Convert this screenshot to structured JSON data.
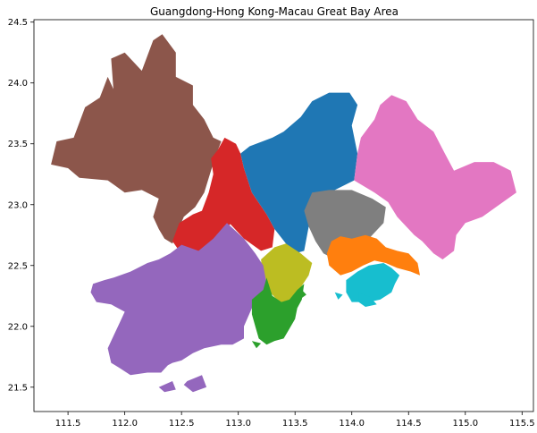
{
  "title": "Guangdong-Hong Kong-Macau Great Bay Area",
  "chart_data": {
    "type": "map",
    "title": "Guangdong-Hong Kong-Macau Great Bay Area",
    "xlabel": "",
    "ylabel": "",
    "xlim": [
      111.2,
      115.6
    ],
    "ylim": [
      21.3,
      24.52
    ],
    "xticks": [
      {
        "value": 111.5,
        "label": "111.5"
      },
      {
        "value": 112.0,
        "label": "112.0"
      },
      {
        "value": 112.5,
        "label": "112.5"
      },
      {
        "value": 113.0,
        "label": "113.0"
      },
      {
        "value": 113.5,
        "label": "113.5"
      },
      {
        "value": 114.0,
        "label": "114.0"
      },
      {
        "value": 114.5,
        "label": "114.5"
      },
      {
        "value": 115.0,
        "label": "115.0"
      },
      {
        "value": 115.5,
        "label": "115.5"
      }
    ],
    "yticks": [
      {
        "value": 21.5,
        "label": "21.5"
      },
      {
        "value": 22.0,
        "label": "22.0"
      },
      {
        "value": 22.5,
        "label": "22.5"
      },
      {
        "value": 23.0,
        "label": "23.0"
      },
      {
        "value": 23.5,
        "label": "23.5"
      },
      {
        "value": 24.0,
        "label": "24.0"
      },
      {
        "value": 24.5,
        "label": "24.5"
      }
    ],
    "grid": false,
    "legend": "none",
    "regions": [
      {
        "key": "brown",
        "color": "#8c564b",
        "polygons": [
          [
            [
              111.35,
              23.33
            ],
            [
              111.4,
              23.52
            ],
            [
              111.55,
              23.55
            ],
            [
              111.65,
              23.8
            ],
            [
              111.78,
              23.88
            ],
            [
              111.85,
              24.05
            ],
            [
              111.9,
              23.95
            ],
            [
              111.88,
              24.2
            ],
            [
              112.0,
              24.25
            ],
            [
              112.15,
              24.1
            ],
            [
              112.25,
              24.35
            ],
            [
              112.33,
              24.4
            ],
            [
              112.45,
              24.25
            ],
            [
              112.45,
              24.05
            ],
            [
              112.6,
              23.98
            ],
            [
              112.6,
              23.82
            ],
            [
              112.7,
              23.7
            ],
            [
              112.78,
              23.55
            ],
            [
              112.85,
              23.52
            ],
            [
              112.8,
              23.4
            ],
            [
              112.75,
              23.25
            ],
            [
              112.7,
              23.1
            ],
            [
              112.62,
              22.98
            ],
            [
              112.52,
              22.9
            ],
            [
              112.42,
              22.68
            ],
            [
              112.35,
              22.72
            ],
            [
              112.3,
              22.8
            ],
            [
              112.25,
              22.9
            ],
            [
              112.3,
              23.05
            ],
            [
              112.15,
              23.12
            ],
            [
              112.0,
              23.1
            ],
            [
              111.85,
              23.2
            ],
            [
              111.6,
              23.22
            ],
            [
              111.5,
              23.3
            ]
          ]
        ]
      },
      {
        "key": "red",
        "color": "#d62728",
        "polygons": [
          [
            [
              112.88,
              23.55
            ],
            [
              112.82,
              23.45
            ],
            [
              112.76,
              23.38
            ],
            [
              112.78,
              23.25
            ],
            [
              112.74,
              23.1
            ],
            [
              112.68,
              22.95
            ],
            [
              112.6,
              22.92
            ],
            [
              112.48,
              22.85
            ],
            [
              112.42,
              22.7
            ],
            [
              112.48,
              22.62
            ],
            [
              112.6,
              22.6
            ],
            [
              112.7,
              22.6
            ],
            [
              112.82,
              22.74
            ],
            [
              112.93,
              22.84
            ],
            [
              113.05,
              22.72
            ],
            [
              113.2,
              22.62
            ],
            [
              113.3,
              22.65
            ],
            [
              113.32,
              22.8
            ],
            [
              113.25,
              22.92
            ],
            [
              113.12,
              23.1
            ],
            [
              113.05,
              23.3
            ],
            [
              113.02,
              23.42
            ],
            [
              112.98,
              23.5
            ]
          ]
        ]
      },
      {
        "key": "blue",
        "color": "#1f77b4",
        "polygons": [
          [
            [
              113.02,
              23.42
            ],
            [
              113.1,
              23.48
            ],
            [
              113.3,
              23.55
            ],
            [
              113.4,
              23.6
            ],
            [
              113.55,
              23.72
            ],
            [
              113.65,
              23.85
            ],
            [
              113.8,
              23.92
            ],
            [
              113.98,
              23.92
            ],
            [
              114.05,
              23.82
            ],
            [
              114.0,
              23.65
            ],
            [
              114.05,
              23.42
            ],
            [
              114.02,
              23.2
            ],
            [
              113.85,
              23.12
            ],
            [
              113.72,
              23.02
            ],
            [
              113.62,
              22.82
            ],
            [
              113.58,
              22.62
            ],
            [
              113.5,
              22.6
            ],
            [
              113.42,
              22.68
            ],
            [
              113.32,
              22.8
            ],
            [
              113.25,
              22.92
            ],
            [
              113.12,
              23.1
            ],
            [
              113.05,
              23.3
            ]
          ]
        ]
      },
      {
        "key": "pink",
        "color": "#e377c2",
        "polygons": [
          [
            [
              114.05,
              23.42
            ],
            [
              114.08,
              23.55
            ],
            [
              114.2,
              23.7
            ],
            [
              114.25,
              23.82
            ],
            [
              114.35,
              23.9
            ],
            [
              114.48,
              23.85
            ],
            [
              114.58,
              23.7
            ],
            [
              114.72,
              23.6
            ],
            [
              114.82,
              23.42
            ],
            [
              114.9,
              23.28
            ],
            [
              115.08,
              23.35
            ],
            [
              115.25,
              23.35
            ],
            [
              115.4,
              23.28
            ],
            [
              115.45,
              23.1
            ],
            [
              115.3,
              23.0
            ],
            [
              115.15,
              22.9
            ],
            [
              115.0,
              22.85
            ],
            [
              114.92,
              22.75
            ],
            [
              114.9,
              22.62
            ],
            [
              114.8,
              22.55
            ],
            [
              114.72,
              22.6
            ],
            [
              114.62,
              22.7
            ],
            [
              114.55,
              22.75
            ],
            [
              114.48,
              22.82
            ],
            [
              114.4,
              22.9
            ],
            [
              114.32,
              23.02
            ],
            [
              114.2,
              23.1
            ],
            [
              114.02,
              23.2
            ]
          ]
        ]
      },
      {
        "key": "gray",
        "color": "#7f7f7f",
        "polygons": [
          [
            [
              113.62,
              22.82
            ],
            [
              113.58,
              22.95
            ],
            [
              113.65,
              23.1
            ],
            [
              113.8,
              23.12
            ],
            [
              114.0,
              23.12
            ],
            [
              114.18,
              23.05
            ],
            [
              114.3,
              22.98
            ],
            [
              114.28,
              22.85
            ],
            [
              114.18,
              22.75
            ],
            [
              114.08,
              22.65
            ],
            [
              113.95,
              22.62
            ],
            [
              113.85,
              22.55
            ],
            [
              113.75,
              22.6
            ],
            [
              113.68,
              22.7
            ]
          ]
        ]
      },
      {
        "key": "orange",
        "color": "#ff7f0e",
        "polygons": [
          [
            [
              113.82,
              22.7
            ],
            [
              113.78,
              22.6
            ],
            [
              113.8,
              22.5
            ],
            [
              113.9,
              22.42
            ],
            [
              114.0,
              22.45
            ],
            [
              114.1,
              22.5
            ],
            [
              114.2,
              22.54
            ],
            [
              114.3,
              22.52
            ],
            [
              114.4,
              22.48
            ],
            [
              114.52,
              22.45
            ],
            [
              114.6,
              22.42
            ],
            [
              114.58,
              22.52
            ],
            [
              114.5,
              22.6
            ],
            [
              114.4,
              22.62
            ],
            [
              114.3,
              22.65
            ],
            [
              114.22,
              22.72
            ],
            [
              114.12,
              22.75
            ],
            [
              114.0,
              22.72
            ],
            [
              113.9,
              22.74
            ]
          ]
        ]
      },
      {
        "key": "cyan",
        "color": "#17becf",
        "polygons": [
          [
            [
              113.95,
              22.38
            ],
            [
              114.05,
              22.45
            ],
            [
              114.15,
              22.5
            ],
            [
              114.28,
              22.52
            ],
            [
              114.35,
              22.48
            ],
            [
              114.42,
              22.42
            ],
            [
              114.38,
              22.35
            ],
            [
              114.35,
              22.28
            ],
            [
              114.25,
              22.22
            ],
            [
              114.15,
              22.2
            ],
            [
              114.0,
              22.2
            ],
            [
              113.95,
              22.28
            ]
          ],
          [
            [
              114.06,
              22.28
            ],
            [
              114.16,
              22.24
            ],
            [
              114.22,
              22.18
            ],
            [
              114.12,
              22.16
            ],
            [
              114.06,
              22.2
            ]
          ],
          [
            [
              113.85,
              22.28
            ],
            [
              113.92,
              22.26
            ],
            [
              113.88,
              22.22
            ]
          ]
        ]
      },
      {
        "key": "olive",
        "color": "#bcbd22",
        "polygons": [
          [
            [
              113.2,
              22.55
            ],
            [
              113.22,
              22.4
            ],
            [
              113.28,
              22.28
            ],
            [
              113.36,
              22.2
            ],
            [
              113.42,
              22.18
            ],
            [
              113.5,
              22.25
            ],
            [
              113.55,
              22.32
            ],
            [
              113.62,
              22.42
            ],
            [
              113.65,
              22.52
            ],
            [
              113.55,
              22.6
            ],
            [
              113.42,
              22.68
            ],
            [
              113.32,
              22.65
            ]
          ]
        ]
      },
      {
        "key": "purple",
        "color": "#9467bd",
        "polygons": [
          [
            [
              112.5,
              22.67
            ],
            [
              112.65,
              22.62
            ],
            [
              112.78,
              22.72
            ],
            [
              112.9,
              22.85
            ],
            [
              113.05,
              22.72
            ],
            [
              113.15,
              22.6
            ],
            [
              113.22,
              22.5
            ],
            [
              113.25,
              22.35
            ],
            [
              113.2,
              22.2
            ],
            [
              113.12,
              22.15
            ],
            [
              113.05,
              22.0
            ],
            [
              113.05,
              21.9
            ],
            [
              112.95,
              21.85
            ],
            [
              112.85,
              21.85
            ],
            [
              112.7,
              21.82
            ],
            [
              112.6,
              21.78
            ],
            [
              112.5,
              21.72
            ],
            [
              112.42,
              21.7
            ],
            [
              112.38,
              21.68
            ],
            [
              112.32,
              21.62
            ],
            [
              112.2,
              21.62
            ],
            [
              112.05,
              21.6
            ],
            [
              111.95,
              21.66
            ],
            [
              111.88,
              21.7
            ],
            [
              111.85,
              21.82
            ],
            [
              111.9,
              21.92
            ],
            [
              111.95,
              22.02
            ],
            [
              112.0,
              22.12
            ],
            [
              111.88,
              22.18
            ],
            [
              111.75,
              22.2
            ],
            [
              111.7,
              22.28
            ],
            [
              111.72,
              22.35
            ],
            [
              111.82,
              22.38
            ],
            [
              111.9,
              22.4
            ],
            [
              112.05,
              22.45
            ],
            [
              112.2,
              22.52
            ],
            [
              112.3,
              22.55
            ],
            [
              112.4,
              22.6
            ]
          ],
          [
            [
              112.55,
              21.55
            ],
            [
              112.68,
              21.6
            ],
            [
              112.72,
              21.5
            ],
            [
              112.6,
              21.46
            ],
            [
              112.52,
              21.52
            ]
          ],
          [
            [
              112.3,
              21.5
            ],
            [
              112.42,
              21.55
            ],
            [
              112.45,
              21.48
            ],
            [
              112.35,
              21.46
            ]
          ]
        ]
      },
      {
        "key": "green",
        "color": "#2ca02c",
        "polygons": [
          [
            [
              113.25,
              22.4
            ],
            [
              113.22,
              22.3
            ],
            [
              113.12,
              22.22
            ],
            [
              113.12,
              22.1
            ],
            [
              113.15,
              22.0
            ],
            [
              113.18,
              21.9
            ],
            [
              113.25,
              21.85
            ],
            [
              113.32,
              21.88
            ],
            [
              113.4,
              21.9
            ],
            [
              113.45,
              21.98
            ],
            [
              113.5,
              22.06
            ],
            [
              113.52,
              22.15
            ],
            [
              113.56,
              22.22
            ],
            [
              113.58,
              22.35
            ],
            [
              113.52,
              22.3
            ],
            [
              113.45,
              22.22
            ],
            [
              113.38,
              22.2
            ],
            [
              113.3,
              22.25
            ]
          ],
          [
            [
              113.5,
              22.26
            ],
            [
              113.56,
              22.3
            ],
            [
              113.6,
              22.26
            ],
            [
              113.54,
              22.22
            ]
          ],
          [
            [
              113.12,
              21.88
            ],
            [
              113.2,
              21.86
            ],
            [
              113.16,
              21.82
            ]
          ]
        ]
      }
    ]
  }
}
